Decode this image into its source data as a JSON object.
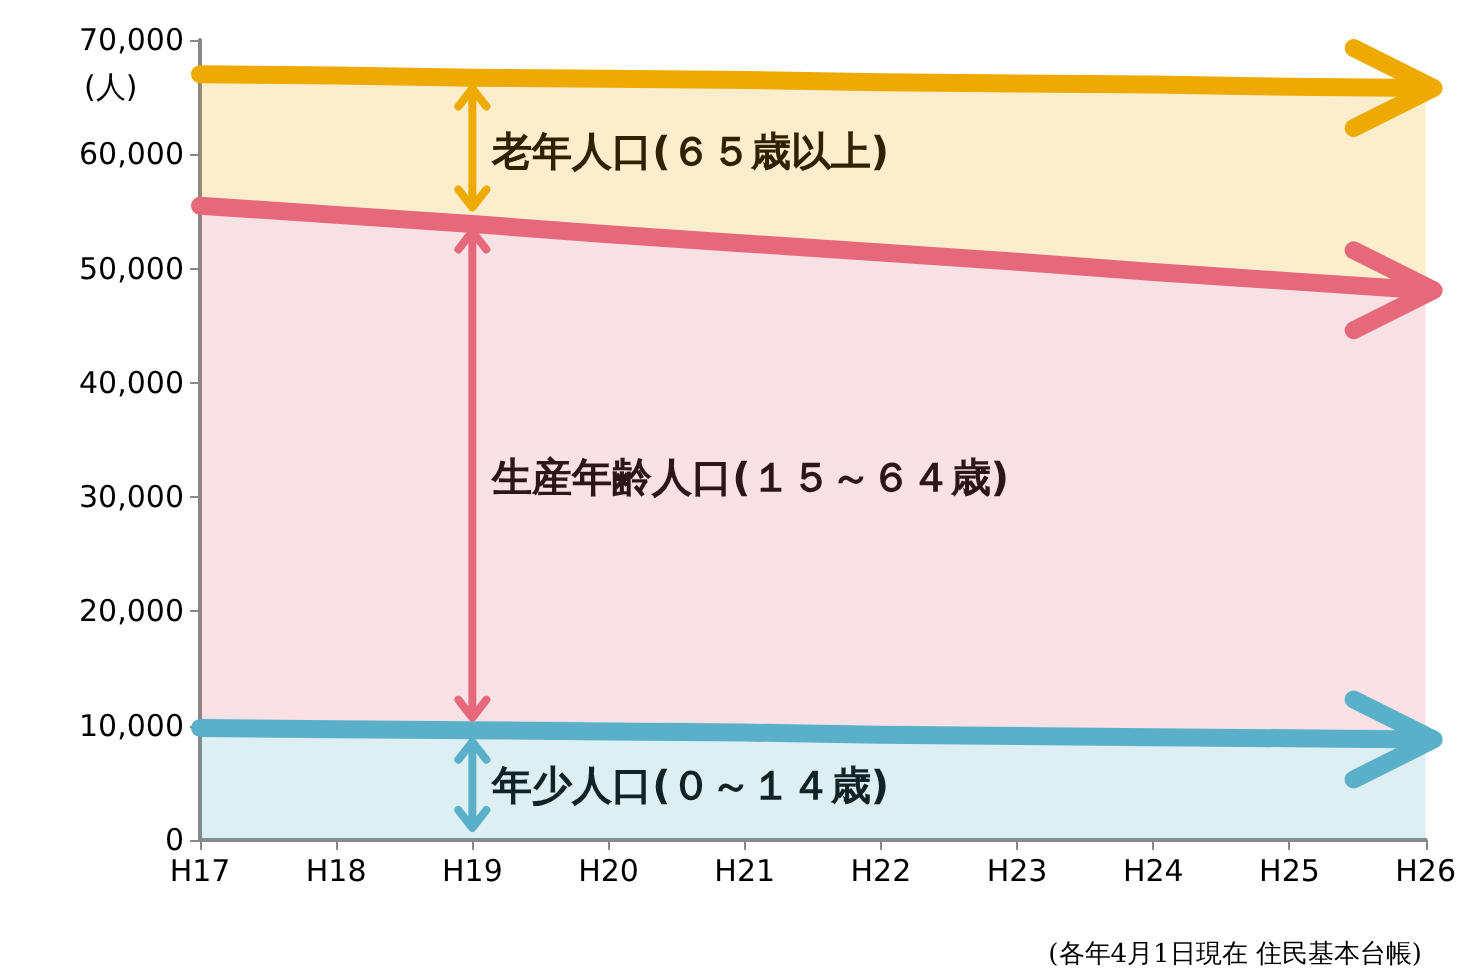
{
  "chart_data": {
    "type": "area",
    "stacked": true,
    "ylabel": "(人)",
    "categories": [
      "H17",
      "H18",
      "H19",
      "H20",
      "H21",
      "H22",
      "H23",
      "H24",
      "H25",
      "H26"
    ],
    "series": [
      {
        "name": "年少人口(０～１４歳)",
        "color": "#5ab0c8",
        "values": [
          9800,
          9700,
          9600,
          9500,
          9400,
          9200,
          9100,
          9000,
          8900,
          8800
        ]
      },
      {
        "name": "生産年齢人口(１５～６４歳)",
        "color": "#e5697b",
        "values": [
          45700,
          45000,
          44300,
          43500,
          42800,
          42200,
          41500,
          40700,
          40000,
          39300
        ]
      },
      {
        "name": "老年人口(６５歳以上)",
        "color": "#eeaa00",
        "values": [
          11500,
          12200,
          12800,
          13600,
          14300,
          14900,
          15600,
          16400,
          17000,
          17700
        ]
      }
    ],
    "ylim": [
      0,
      70000
    ],
    "yticks": [
      0,
      {
        "value": 10000,
        "label": "10,000"
      },
      {
        "value": 20000,
        "label": "20,000"
      },
      {
        "value": 30000,
        "label": "30,000"
      },
      {
        "value": 40000,
        "label": "40,000"
      },
      {
        "value": 50000,
        "label": "50,000"
      },
      {
        "value": 60000,
        "label": "60,000"
      },
      {
        "value": 70000,
        "label": "70,000"
      }
    ],
    "grid": false,
    "legend": "left",
    "annotations": [
      "(各年4月1日現在 住民基本台帳)"
    ]
  }
}
